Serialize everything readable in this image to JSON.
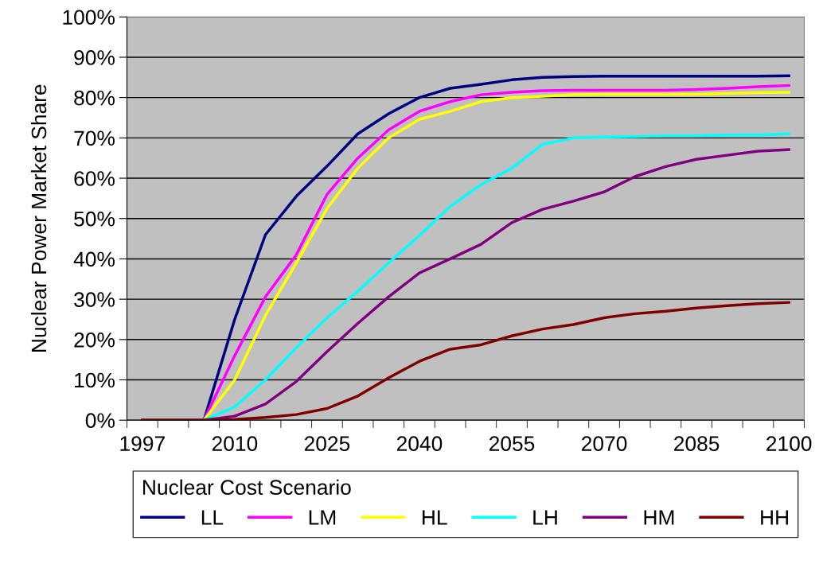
{
  "chart_data": {
    "type": "line",
    "ylabel": "Nuclear Power Market Share",
    "legend_title": "Nuclear Cost Scenario",
    "categories": [
      "1997",
      null,
      null,
      "2010",
      null,
      null,
      "2025",
      null,
      null,
      "2040",
      null,
      null,
      "2055",
      null,
      null,
      "2070",
      null,
      null,
      "2085",
      null,
      null,
      "2100"
    ],
    "ylim": [
      0,
      100
    ],
    "yticks": [
      {
        "value": 0,
        "label": "0%"
      },
      {
        "value": 10,
        "label": "10%"
      },
      {
        "value": 20,
        "label": "20%"
      },
      {
        "value": 30,
        "label": "30%"
      },
      {
        "value": 40,
        "label": "40%"
      },
      {
        "value": 50,
        "label": "50%"
      },
      {
        "value": 60,
        "label": "60%"
      },
      {
        "value": 70,
        "label": "70%"
      },
      {
        "value": 80,
        "label": "80%"
      },
      {
        "value": 90,
        "label": "90%"
      },
      {
        "value": 100,
        "label": "100%"
      }
    ],
    "grid": "y",
    "legend": "bottom",
    "marker": "none",
    "line_style": "solid",
    "series": [
      {
        "name": "LL",
        "color": "#000080",
        "values": [
          0,
          0,
          0,
          25,
          46,
          55.5,
          63,
          71,
          76,
          80,
          82.3,
          83.3,
          84.4,
          85,
          85.2,
          85.3,
          85.3,
          85.3,
          85.3,
          85.3,
          85.3,
          85.4
        ]
      },
      {
        "name": "LM",
        "color": "#ff00ff",
        "values": [
          0,
          0,
          0,
          16,
          30.6,
          41,
          56,
          65,
          72,
          76.6,
          79,
          80.7,
          81.3,
          81.7,
          81.8,
          81.8,
          81.8,
          81.8,
          82,
          82.3,
          82.7,
          83
        ]
      },
      {
        "name": "HL",
        "color": "#ffff00",
        "values": [
          0,
          0,
          0,
          10,
          26,
          39,
          52.5,
          62.5,
          70,
          74.6,
          76.6,
          79,
          80,
          80.3,
          80.7,
          80.8,
          80.8,
          80.8,
          80.8,
          81,
          81.2,
          81.3
        ]
      },
      {
        "name": "LH",
        "color": "#00ffff",
        "values": [
          0,
          0,
          0,
          3.3,
          10,
          18,
          25.4,
          32,
          39,
          45.8,
          53,
          58.4,
          62.5,
          68.4,
          70,
          70.2,
          70.3,
          70.5,
          70.5,
          70.7,
          70.7,
          71
        ]
      },
      {
        "name": "HM",
        "color": "#800080",
        "values": [
          0,
          0,
          0,
          1,
          4,
          9.6,
          17,
          24,
          30.6,
          36.5,
          40,
          43.6,
          49,
          52.3,
          54.3,
          56.6,
          60.4,
          62.9,
          64.7,
          65.7,
          66.7,
          67.1
        ]
      },
      {
        "name": "HH",
        "color": "#800000",
        "values": [
          0,
          0,
          0,
          0.2,
          0.7,
          1.4,
          2.9,
          6,
          10.5,
          14.6,
          17.6,
          18.7,
          20.9,
          22.6,
          23.7,
          25.4,
          26.4,
          27,
          27.8,
          28.4,
          28.9,
          29.2
        ]
      }
    ]
  }
}
